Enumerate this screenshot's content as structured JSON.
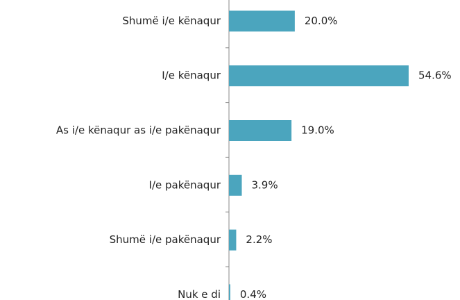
{
  "chart_data": {
    "type": "bar",
    "orientation": "horizontal",
    "categories": [
      "Shumë i/e kënaqur",
      "I/e kënaqur",
      "As i/e kënaqur as i/e pakënaqur",
      "I/e pakënaqur",
      "Shumë i/e pakënaqur",
      "Nuk e di"
    ],
    "values": [
      20.0,
      54.6,
      19.0,
      3.9,
      2.2,
      0.4
    ],
    "value_labels": [
      "20.0%",
      "54.6%",
      "19.0%",
      "3.9%",
      "2.2%",
      "0.4%"
    ],
    "color": "#4ba5be"
  }
}
